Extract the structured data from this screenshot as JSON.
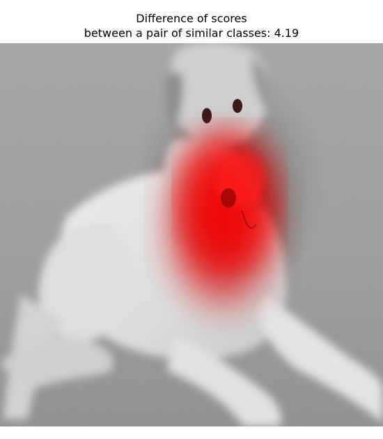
{
  "title": {
    "line1": "Difference of scores",
    "line2": "between a pair of similar classes: 4.19"
  },
  "image": {
    "subject": "grayscale-dog-photo",
    "overlay": "saliency-heatmap",
    "colors": {
      "sand_light": "#a9a9a9",
      "sand_dark": "#7d7d7d",
      "fur": "#e6e6e6",
      "fur_shadow": "#bdbdbd",
      "heat": "#ff0000"
    }
  }
}
